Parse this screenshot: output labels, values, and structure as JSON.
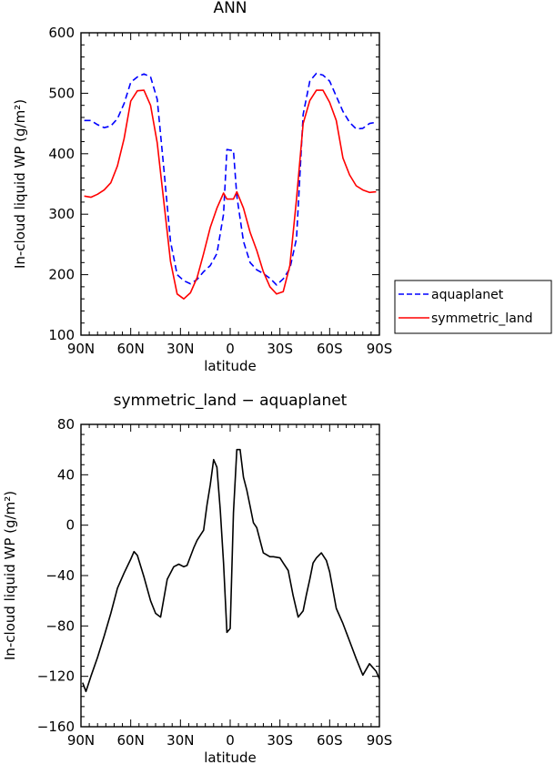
{
  "chart_data": [
    {
      "type": "line",
      "title": "ANN",
      "xlabel": "latitude",
      "ylabel": "In-cloud liquid WP (g/m²)",
      "xlim": [
        90,
        -90
      ],
      "ylim": [
        100,
        600
      ],
      "xticks": [
        {
          "value": 90,
          "label": "90N"
        },
        {
          "value": 60,
          "label": "60N"
        },
        {
          "value": 30,
          "label": "30N"
        },
        {
          "value": 0,
          "label": "0"
        },
        {
          "value": -30,
          "label": "30S"
        },
        {
          "value": -60,
          "label": "60S"
        },
        {
          "value": -90,
          "label": "90S"
        }
      ],
      "yticks": [
        100,
        200,
        300,
        400,
        500,
        600
      ],
      "legend_position": "right",
      "series": [
        {
          "name": "aquaplanet",
          "color": "#0000ff",
          "dash": "dashed",
          "x": [
            88,
            84,
            80,
            76,
            72,
            68,
            64,
            60,
            56,
            52,
            48,
            44,
            40,
            36,
            32,
            28,
            24,
            20,
            16,
            12,
            8,
            4,
            2,
            -2,
            -4,
            -8,
            -12,
            -16,
            -20,
            -24,
            -28,
            -32,
            -36,
            -40,
            -44,
            -48,
            -52,
            -56,
            -60,
            -64,
            -68,
            -72,
            -76,
            -80,
            -84,
            -88
          ],
          "y": [
            455,
            455,
            448,
            443,
            446,
            458,
            483,
            518,
            527,
            532,
            527,
            490,
            375,
            255,
            200,
            190,
            185,
            192,
            205,
            215,
            235,
            300,
            407,
            405,
            330,
            255,
            220,
            208,
            202,
            194,
            183,
            193,
            210,
            260,
            465,
            520,
            533,
            530,
            520,
            495,
            470,
            452,
            441,
            442,
            450,
            452
          ]
        },
        {
          "name": "symmetric_land",
          "color": "#ff0000",
          "dash": "solid",
          "x": [
            88,
            84,
            80,
            76,
            72,
            68,
            64,
            60,
            56,
            52,
            48,
            44,
            40,
            36,
            32,
            28,
            24,
            20,
            16,
            12,
            8,
            4,
            2,
            -2,
            -4,
            -8,
            -12,
            -16,
            -20,
            -24,
            -28,
            -32,
            -36,
            -40,
            -44,
            -48,
            -52,
            -56,
            -60,
            -64,
            -68,
            -72,
            -76,
            -80,
            -84,
            -88
          ],
          "y": [
            330,
            328,
            333,
            340,
            352,
            380,
            425,
            487,
            504,
            505,
            480,
            418,
            320,
            222,
            168,
            160,
            170,
            195,
            235,
            278,
            310,
            335,
            325,
            325,
            337,
            310,
            270,
            240,
            205,
            180,
            168,
            172,
            215,
            325,
            450,
            488,
            505,
            505,
            485,
            455,
            393,
            365,
            347,
            340,
            336,
            337
          ]
        }
      ]
    },
    {
      "type": "line",
      "title": "symmetric_land  −  aquaplanet",
      "xlabel": "latitude",
      "ylabel": "In-cloud liquid WP (g/m²)",
      "xlim": [
        90,
        -90
      ],
      "ylim": [
        -160,
        80
      ],
      "xticks": [
        {
          "value": 90,
          "label": "90N"
        },
        {
          "value": 60,
          "label": "60N"
        },
        {
          "value": 30,
          "label": "30N"
        },
        {
          "value": 0,
          "label": "0"
        },
        {
          "value": -30,
          "label": "30S"
        },
        {
          "value": -60,
          "label": "60S"
        },
        {
          "value": -90,
          "label": "90S"
        }
      ],
      "yticks": [
        -160,
        -120,
        -80,
        -40,
        0,
        40,
        80
      ],
      "series": [
        {
          "color": "#000000",
          "dash": "solid",
          "x": [
            89,
            87,
            84,
            80,
            76,
            72,
            68,
            64,
            60,
            58,
            56,
            52,
            48,
            45,
            42,
            38,
            34,
            31,
            28,
            26,
            22,
            20,
            18,
            16,
            14,
            12,
            10,
            8,
            6,
            4,
            2,
            0,
            -2,
            -4,
            -6,
            -8,
            -10,
            -12,
            -14,
            -16,
            -18,
            -20,
            -24,
            -26,
            -30,
            -32,
            -35,
            -38,
            -41,
            -44,
            -46,
            -48,
            -50,
            -52,
            -55,
            -58,
            -60,
            -64,
            -68,
            -72,
            -76,
            -80,
            -84,
            -88,
            -90
          ],
          "y": [
            -125,
            -132,
            -120,
            -105,
            -88,
            -70,
            -50,
            -38,
            -27,
            -21,
            -24,
            -41,
            -60,
            -70,
            -73,
            -43,
            -33,
            -31,
            -33,
            -32,
            -18,
            -12,
            -8,
            -4,
            16,
            32,
            52,
            46,
            12,
            -30,
            -85,
            -82,
            10,
            60,
            60,
            38,
            28,
            15,
            2,
            -2,
            -12,
            -22,
            -25,
            -25,
            -26,
            -30,
            -36,
            -56,
            -73,
            -68,
            -55,
            -43,
            -30,
            -26,
            -22,
            -28,
            -37,
            -66,
            -78,
            -92,
            -106,
            -119,
            -110,
            -116,
            -122
          ]
        }
      ]
    }
  ]
}
